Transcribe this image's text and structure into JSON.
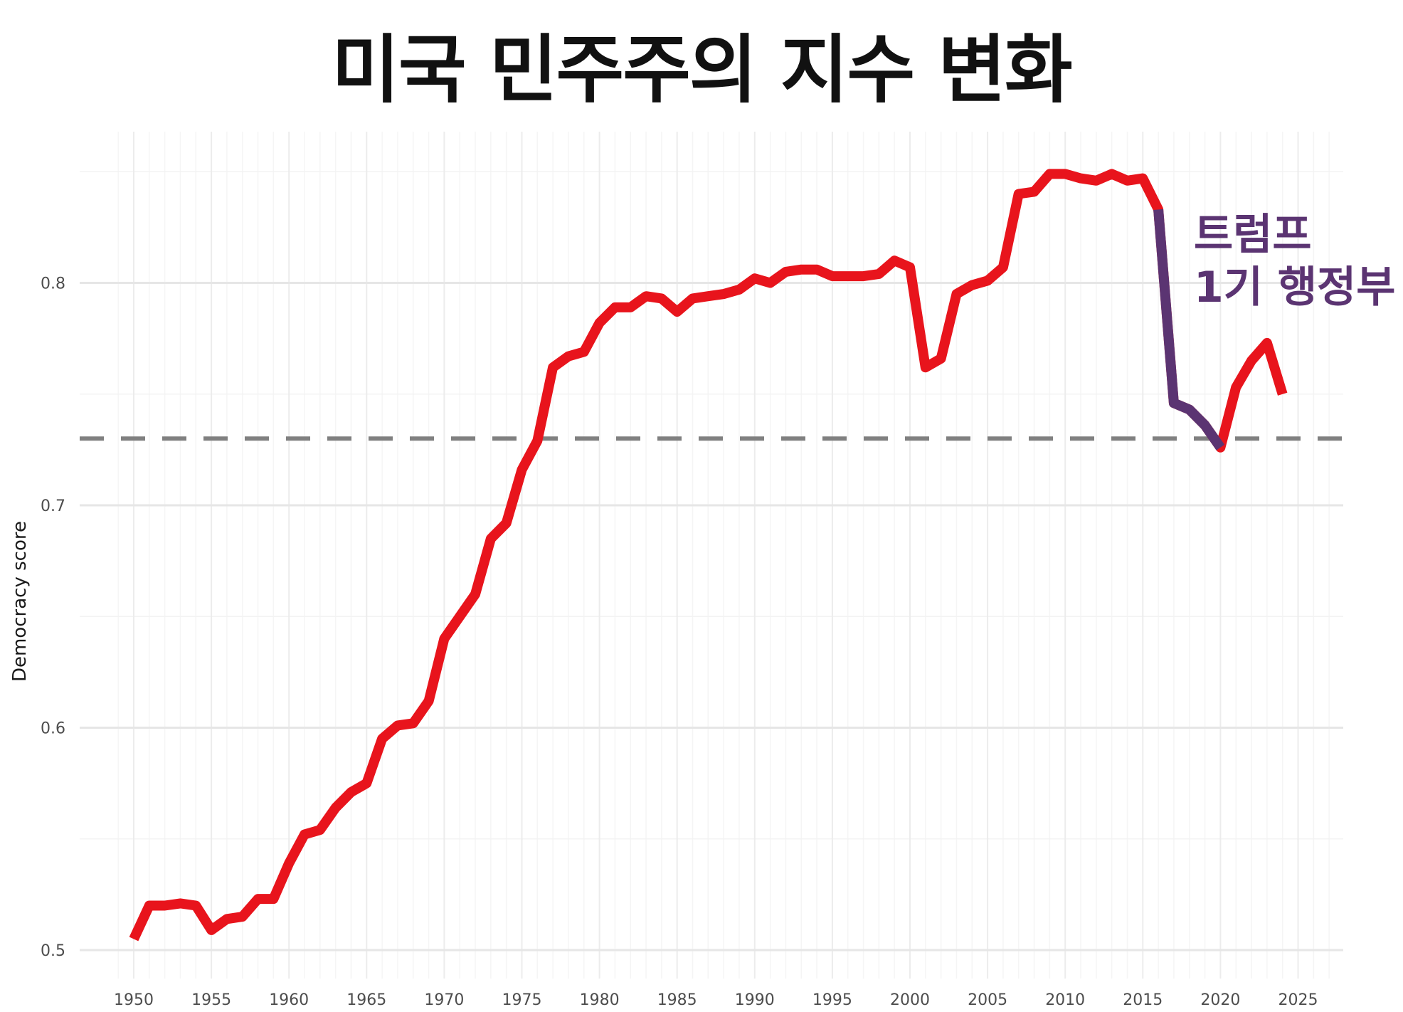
{
  "chart_data": {
    "type": "line",
    "title": "미국 민주주의 지수 변화",
    "xlabel": "",
    "ylabel": "Democracy score",
    "xlim": [
      1948.5,
      2027
    ],
    "ylim": [
      0.49,
      0.855
    ],
    "x_ticks": [
      1950,
      1955,
      1960,
      1965,
      1970,
      1975,
      1980,
      1985,
      1990,
      1995,
      2000,
      2005,
      2010,
      2015,
      2020,
      2025
    ],
    "y_ticks": [
      0.5,
      0.6,
      0.7,
      0.8
    ],
    "y_tick_labels": [
      "0.5",
      "0.6",
      "0.7",
      "0.8"
    ],
    "x_tick_labels": [
      "1950",
      "1955",
      "1960",
      "1965",
      "1970",
      "1975",
      "1980",
      "1985",
      "1990",
      "1995",
      "2000",
      "2005",
      "2010",
      "2015",
      "2020",
      "2025"
    ],
    "grid": true,
    "reference_line": {
      "y": 0.73,
      "style": "dashed",
      "color": "#808080"
    },
    "series": [
      {
        "color": "#e8141c",
        "x": [
          1950,
          1951,
          1952,
          1953,
          1954,
          1955,
          1956,
          1957,
          1958,
          1959,
          1960,
          1961,
          1962,
          1963,
          1964,
          1965,
          1966,
          1967,
          1968,
          1969,
          1970,
          1971,
          1972,
          1973,
          1974,
          1975,
          1976,
          1977,
          1978,
          1979,
          1980,
          1981,
          1982,
          1983,
          1984,
          1985,
          1986,
          1987,
          1988,
          1989,
          1990,
          1991,
          1992,
          1993,
          1994,
          1995,
          1996,
          1997,
          1998,
          1999,
          2000,
          2001,
          2002,
          2003,
          2004,
          2005,
          2006,
          2007,
          2008,
          2009,
          2010,
          2011,
          2012,
          2013,
          2014,
          2015,
          2016,
          2017,
          2018,
          2019,
          2020,
          2021,
          2022,
          2023,
          2024
        ],
        "values": [
          0.505,
          0.52,
          0.52,
          0.521,
          0.52,
          0.509,
          0.514,
          0.515,
          0.523,
          0.523,
          0.539,
          0.552,
          0.554,
          0.564,
          0.571,
          0.575,
          0.595,
          0.601,
          0.602,
          0.612,
          0.64,
          0.65,
          0.66,
          0.685,
          0.692,
          0.716,
          0.729,
          0.762,
          0.767,
          0.769,
          0.782,
          0.789,
          0.789,
          0.794,
          0.793,
          0.787,
          0.793,
          0.794,
          0.795,
          0.797,
          0.802,
          0.8,
          0.805,
          0.806,
          0.806,
          0.803,
          0.803,
          0.803,
          0.804,
          0.81,
          0.807,
          0.762,
          0.766,
          0.795,
          0.799,
          0.801,
          0.807,
          0.84,
          0.841,
          0.849,
          0.849,
          0.847,
          0.846,
          0.849,
          0.846,
          0.847,
          0.833,
          0.746,
          0.743,
          0.736,
          0.726,
          0.753,
          0.765,
          0.773,
          0.75
        ]
      },
      {
        "color": "#5b3472",
        "x": [
          2016,
          2017,
          2018,
          2019,
          2020
        ],
        "values": [
          0.833,
          0.746,
          0.743,
          0.736,
          0.726
        ]
      }
    ],
    "annotations": [
      {
        "lines": [
          "트럼프",
          "1기 행정부"
        ],
        "color": "#5b3472"
      }
    ]
  }
}
